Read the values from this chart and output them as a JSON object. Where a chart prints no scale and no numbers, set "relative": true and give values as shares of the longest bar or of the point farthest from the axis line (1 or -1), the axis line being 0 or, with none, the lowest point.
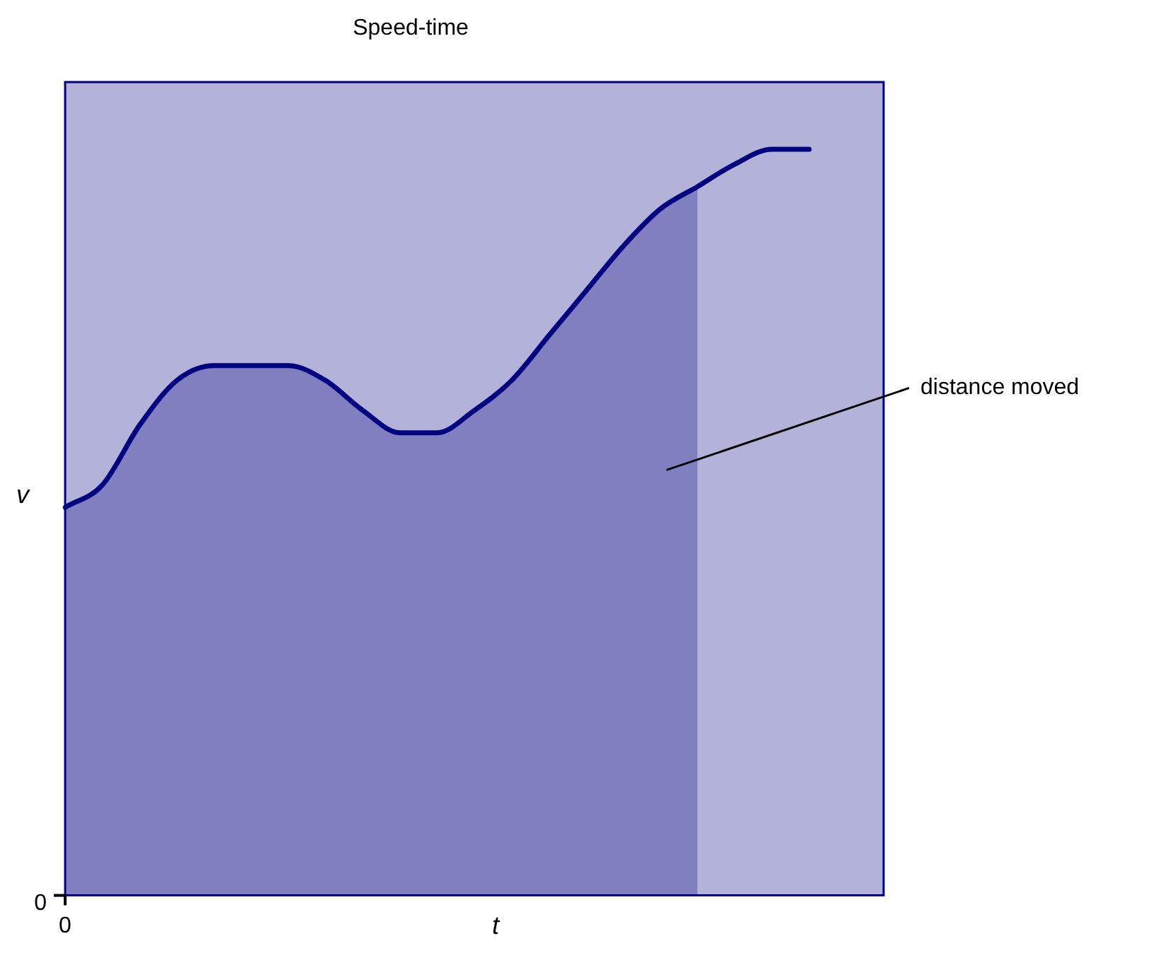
{
  "chart_data": {
    "type": "line",
    "title": "Speed-time",
    "xlabel": "t",
    "ylabel": "v",
    "relative": true,
    "legend": false,
    "categories": [
      null,
      null,
      null,
      null,
      null,
      null,
      null,
      null,
      null,
      null,
      null,
      null,
      null,
      null,
      null,
      null,
      null,
      null,
      null,
      null,
      null,
      null,
      null
    ],
    "series": [
      {
        "name": "distance moved",
        "type": "area",
        "color": "#8080c0",
        "values": [
          0.52,
          0.55,
          0.63,
          0.69,
          0.71,
          0.71,
          0.71,
          0.69,
          0.65,
          0.62,
          0.62,
          0.65,
          0.69,
          0.75,
          0.81,
          0.87,
          0.92,
          0.95,
          null,
          null,
          null,
          null,
          null
        ]
      },
      {
        "color": "#000080",
        "values": [
          0.52,
          0.55,
          0.63,
          0.69,
          0.71,
          0.71,
          0.71,
          0.69,
          0.65,
          0.62,
          0.62,
          0.65,
          0.69,
          0.75,
          0.81,
          0.87,
          0.92,
          0.95,
          0.98,
          1.0,
          1.0,
          null,
          null
        ]
      }
    ],
    "annotations": [
      "0",
      "0"
    ]
  }
}
